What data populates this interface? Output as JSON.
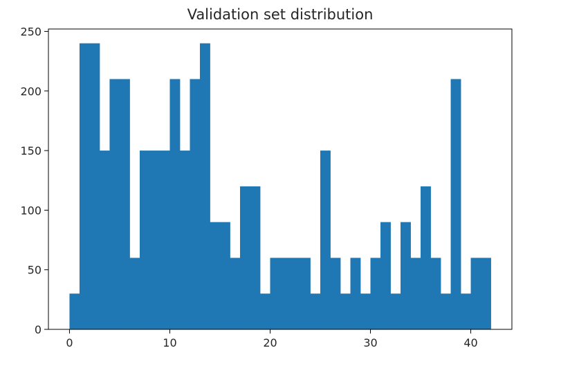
{
  "chart_data": {
    "type": "bar",
    "title": "Validation set distribution",
    "xlabel": "",
    "ylabel": "",
    "xlim": [
      -2.1,
      44.1
    ],
    "ylim": [
      0,
      252
    ],
    "xticks": [
      0,
      10,
      20,
      30,
      40
    ],
    "yticks": [
      0,
      50,
      100,
      150,
      200,
      250
    ],
    "grid": false,
    "bar_color": "#1f77b4",
    "bin_edges": [
      0,
      1,
      2,
      3,
      4,
      5,
      6,
      7,
      8,
      9,
      10,
      11,
      12,
      13,
      14,
      15,
      16,
      17,
      18,
      19,
      20,
      21,
      22,
      23,
      24,
      25,
      26,
      27,
      28,
      29,
      30,
      31,
      32,
      33,
      34,
      35,
      36,
      37,
      38,
      39,
      40,
      41,
      42
    ],
    "values": [
      30,
      240,
      240,
      150,
      210,
      210,
      60,
      150,
      150,
      150,
      210,
      150,
      210,
      240,
      90,
      90,
      60,
      120,
      120,
      30,
      60,
      60,
      60,
      60,
      30,
      150,
      60,
      30,
      60,
      30,
      60,
      90,
      30,
      90,
      60,
      120,
      60,
      30,
      210,
      30,
      60,
      60
    ]
  }
}
